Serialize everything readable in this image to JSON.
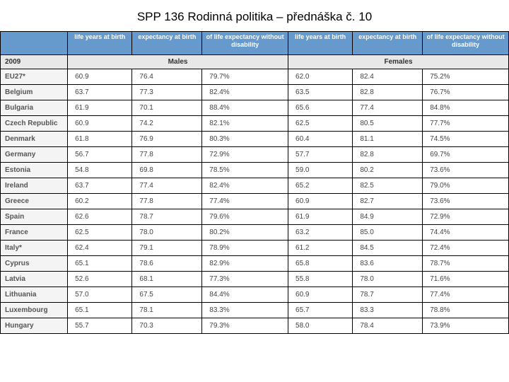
{
  "title": "SPP 136 Rodinná politika – přednáška č. 10",
  "header": {
    "blank": "",
    "m1": "life years at birth",
    "m2": "expectancy at birth",
    "m3": "of life expectancy without disability",
    "f1": "life years at birth",
    "f2": "expectancy at birth",
    "f3": "of life expectancy without disability"
  },
  "group": {
    "year": "2009",
    "males": "Males",
    "females": "Females"
  },
  "rows": [
    {
      "label": "EU27*",
      "m1": "60.9",
      "m2": "76.4",
      "m3": "79.7%",
      "f1": "62.0",
      "f2": "82.4",
      "f3": "75.2%"
    },
    {
      "label": "Belgium",
      "m1": "63.7",
      "m2": "77.3",
      "m3": "82.4%",
      "f1": "63.5",
      "f2": "82.8",
      "f3": "76.7%"
    },
    {
      "label": "Bulgaria",
      "m1": "61.9",
      "m2": "70.1",
      "m3": "88.4%",
      "f1": "65.6",
      "f2": "77.4",
      "f3": "84.8%"
    },
    {
      "label": "Czech Republic",
      "m1": "60.9",
      "m2": "74.2",
      "m3": "82.1%",
      "f1": "62.5",
      "f2": "80.5",
      "f3": "77.7%"
    },
    {
      "label": "Denmark",
      "m1": "61.8",
      "m2": "76.9",
      "m3": "80.3%",
      "f1": "60.4",
      "f2": "81.1",
      "f3": "74.5%"
    },
    {
      "label": "Germany",
      "m1": "56.7",
      "m2": "77.8",
      "m3": "72.9%",
      "f1": "57.7",
      "f2": "82.8",
      "f3": "69.7%"
    },
    {
      "label": "Estonia",
      "m1": "54.8",
      "m2": "69.8",
      "m3": "78.5%",
      "f1": "59.0",
      "f2": "80.2",
      "f3": "73.6%"
    },
    {
      "label": "Ireland",
      "m1": "63.7",
      "m2": "77.4",
      "m3": "82.4%",
      "f1": "65.2",
      "f2": "82.5",
      "f3": "79.0%"
    },
    {
      "label": "Greece",
      "m1": "60.2",
      "m2": "77.8",
      "m3": "77.4%",
      "f1": "60.9",
      "f2": "82.7",
      "f3": "73.6%"
    },
    {
      "label": "Spain",
      "m1": "62.6",
      "m2": "78.7",
      "m3": "79.6%",
      "f1": "61.9",
      "f2": "84.9",
      "f3": "72.9%"
    },
    {
      "label": "France",
      "m1": "62.5",
      "m2": "78.0",
      "m3": "80.2%",
      "f1": "63.2",
      "f2": "85.0",
      "f3": "74.4%"
    },
    {
      "label": "Italy*",
      "m1": "62.4",
      "m2": "79.1",
      "m3": "78.9%",
      "f1": "61.2",
      "f2": "84.5",
      "f3": "72.4%"
    },
    {
      "label": "Cyprus",
      "m1": "65.1",
      "m2": "78.6",
      "m3": "82.9%",
      "f1": "65.8",
      "f2": "83.6",
      "f3": "78.7%"
    },
    {
      "label": "Latvia",
      "m1": "52.6",
      "m2": "68.1",
      "m3": "77.3%",
      "f1": "55.8",
      "f2": "78.0",
      "f3": "71.6%"
    },
    {
      "label": "Lithuania",
      "m1": "57.0",
      "m2": "67.5",
      "m3": "84.4%",
      "f1": "60.9",
      "f2": "78.7",
      "f3": "77.4%"
    },
    {
      "label": "Luxembourg",
      "m1": "65.1",
      "m2": "78.1",
      "m3": "83.3%",
      "f1": "65.7",
      "f2": "83.3",
      "f3": "78.8%"
    },
    {
      "label": "Hungary",
      "m1": "55.7",
      "m2": "70.3",
      "m3": "79.3%",
      "f1": "58.0",
      "f2": "78.4",
      "f3": "73.9%"
    }
  ],
  "colors": {
    "header_bg": "#6699cc",
    "header_text": "#ffffff",
    "group_bg": "#e8e8e8",
    "rowlabel_bg": "#f4f4f4",
    "border": "#000000",
    "text": "#444444"
  }
}
